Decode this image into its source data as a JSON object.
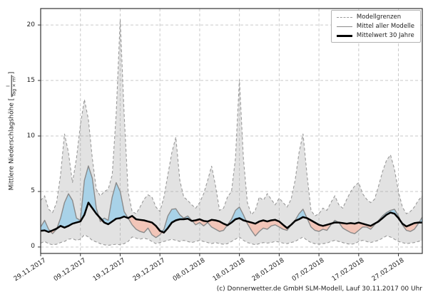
{
  "caption": "(c) Donnerwetter.de GmbH SLM-Modell, Lauf 30.11.2017 00 Uhr",
  "chart_data": {
    "type": "line",
    "title": "",
    "ylabel_text": "Mittlere Niederschlagshöhe",
    "ylabel_unit_numerator": "l",
    "ylabel_unit_denominator": "Tag × m²",
    "grid": true,
    "legend_position": "upper right",
    "ylim": [
      -0.58,
      21.48
    ],
    "y_ticks": [
      {
        "label": "0",
        "value": 0
      },
      {
        "label": "5",
        "value": 5
      },
      {
        "label": "10",
        "value": 10
      },
      {
        "label": "15",
        "value": 15
      },
      {
        "label": "20",
        "value": 20
      }
    ],
    "x_ticks": [
      {
        "label": "29.11.2017",
        "day": 0
      },
      {
        "label": "09.12.2017",
        "day": 10
      },
      {
        "label": "19.12.2017",
        "day": 20
      },
      {
        "label": "29.12.2017",
        "day": 30
      },
      {
        "label": "08.01.2018",
        "day": 40
      },
      {
        "label": "18.01.2018",
        "day": 50
      },
      {
        "label": "28.01.2018",
        "day": 60
      },
      {
        "label": "07.02.2018",
        "day": 70
      },
      {
        "label": "17.02.2018",
        "day": 80
      },
      {
        "label": "27.02.2018",
        "day": 90
      }
    ],
    "days_total": 96,
    "legend": [
      {
        "label": "Modellgrenzen",
        "style": "dashed",
        "color": "#999999"
      },
      {
        "label": "Mittel aller Modelle",
        "style": "solid",
        "color": "#8a8a8a"
      },
      {
        "label": "Mittelwert 30 Jahre",
        "style": "solid-thick",
        "color": "#000000"
      }
    ],
    "colors": {
      "band_fill": "rgba(158,158,158,0.30)",
      "bound_line": "#999999",
      "model_mean_line": "#8a8a8a",
      "clim_mean_line": "#000000",
      "above_fill": "#a8d2e8",
      "below_fill": "#f2c5b8",
      "grid_line": "#c9c9c9",
      "frame": "#333333"
    },
    "series": [
      {
        "name": "Modellgrenze oben",
        "values": [
          4.2,
          4.6,
          3.4,
          3.1,
          4.0,
          6.5,
          10.2,
          8.5,
          5.8,
          8.0,
          11.0,
          13.3,
          11.5,
          8.0,
          5.2,
          4.6,
          5.0,
          5.2,
          6.5,
          12.0,
          20.5,
          12.0,
          5.0,
          3.2,
          3.0,
          3.6,
          4.3,
          4.7,
          4.5,
          3.6,
          3.2,
          4.5,
          6.5,
          8.5,
          9.9,
          6.0,
          4.5,
          4.2,
          3.8,
          3.5,
          4.0,
          4.8,
          6.0,
          7.3,
          5.5,
          3.3,
          3.5,
          4.5,
          5.0,
          8.0,
          15.1,
          8.0,
          4.0,
          2.9,
          3.3,
          4.5,
          4.2,
          4.8,
          4.3,
          3.8,
          4.4,
          4.0,
          3.6,
          4.3,
          6.0,
          8.5,
          10.2,
          6.5,
          3.3,
          2.8,
          3.0,
          3.5,
          3.3,
          4.0,
          4.6,
          3.8,
          3.5,
          4.3,
          5.0,
          5.5,
          5.8,
          4.8,
          4.3,
          4.0,
          4.3,
          5.5,
          6.8,
          7.8,
          8.3,
          7.0,
          5.0,
          3.6,
          3.0,
          3.2,
          3.6,
          4.2,
          4.6
        ]
      },
      {
        "name": "Modellgrenze unten",
        "values": [
          0.35,
          0.5,
          0.3,
          0.2,
          0.25,
          0.4,
          0.5,
          0.7,
          0.75,
          0.6,
          0.7,
          1.1,
          0.9,
          0.6,
          0.45,
          0.3,
          0.2,
          0.15,
          0.2,
          0.25,
          0.2,
          0.3,
          0.5,
          0.9,
          0.8,
          0.7,
          0.8,
          0.7,
          0.5,
          0.3,
          0.4,
          0.5,
          0.6,
          0.7,
          0.6,
          0.5,
          0.6,
          0.5,
          0.4,
          0.5,
          0.6,
          0.5,
          0.4,
          0.3,
          0.4,
          0.3,
          0.25,
          0.3,
          0.5,
          0.7,
          0.9,
          0.6,
          0.4,
          0.3,
          0.2,
          0.3,
          0.4,
          0.35,
          0.4,
          0.5,
          0.45,
          0.35,
          0.3,
          0.4,
          0.5,
          0.7,
          0.9,
          0.6,
          0.4,
          0.3,
          0.25,
          0.3,
          0.35,
          0.5,
          0.6,
          0.5,
          0.4,
          0.3,
          0.25,
          0.3,
          0.5,
          0.6,
          0.5,
          0.4,
          0.5,
          0.6,
          0.8,
          1.0,
          0.9,
          0.7,
          0.5,
          0.4,
          0.3,
          0.35,
          0.4,
          0.5,
          0.6
        ]
      },
      {
        "name": "Mittel aller Modelle",
        "values": [
          1.8,
          2.4,
          1.6,
          1.2,
          1.6,
          2.6,
          4.0,
          4.8,
          4.2,
          2.6,
          2.4,
          6.0,
          7.3,
          6.2,
          3.5,
          2.3,
          2.6,
          2.4,
          4.5,
          5.8,
          5.0,
          3.2,
          2.6,
          2.0,
          1.6,
          1.4,
          1.3,
          1.7,
          1.1,
          0.85,
          1.1,
          1.6,
          2.8,
          3.4,
          3.45,
          2.9,
          2.6,
          2.8,
          2.4,
          2.0,
          2.2,
          1.9,
          2.2,
          1.8,
          1.6,
          1.4,
          1.5,
          2.0,
          2.5,
          3.3,
          3.6,
          2.9,
          2.1,
          1.5,
          1.0,
          1.4,
          1.7,
          1.6,
          1.9,
          2.0,
          1.8,
          1.6,
          1.5,
          2.0,
          2.4,
          3.0,
          3.4,
          2.6,
          1.8,
          1.5,
          1.4,
          1.6,
          1.5,
          2.0,
          2.4,
          2.2,
          1.7,
          1.5,
          1.3,
          1.2,
          1.5,
          1.8,
          1.8,
          1.6,
          2.0,
          2.4,
          2.8,
          3.1,
          3.3,
          3.4,
          2.8,
          2.0,
          1.5,
          1.4,
          1.6,
          2.1,
          2.7
        ]
      },
      {
        "name": "Mittelwert 30 Jahre",
        "values": [
          1.45,
          1.5,
          1.35,
          1.5,
          1.65,
          1.9,
          1.75,
          1.9,
          2.1,
          2.2,
          2.3,
          2.9,
          4.0,
          3.5,
          3.0,
          2.6,
          2.2,
          2.05,
          2.3,
          2.55,
          2.6,
          2.75,
          2.6,
          2.8,
          2.5,
          2.45,
          2.4,
          2.3,
          2.2,
          1.9,
          1.45,
          1.3,
          1.7,
          2.2,
          2.4,
          2.5,
          2.5,
          2.55,
          2.35,
          2.4,
          2.5,
          2.35,
          2.3,
          2.45,
          2.4,
          2.3,
          2.1,
          1.95,
          2.2,
          2.5,
          2.6,
          2.4,
          2.3,
          2.2,
          2.1,
          2.3,
          2.4,
          2.3,
          2.4,
          2.45,
          2.3,
          2.0,
          1.7,
          2.0,
          2.35,
          2.5,
          2.7,
          2.6,
          2.4,
          2.2,
          2.0,
          1.9,
          2.0,
          2.1,
          2.2,
          2.2,
          2.15,
          2.1,
          2.15,
          2.1,
          2.2,
          2.1,
          2.0,
          1.9,
          2.1,
          2.3,
          2.6,
          2.9,
          3.1,
          3.0,
          2.6,
          2.1,
          1.85,
          2.0,
          2.15,
          2.2,
          2.2
        ]
      }
    ]
  }
}
